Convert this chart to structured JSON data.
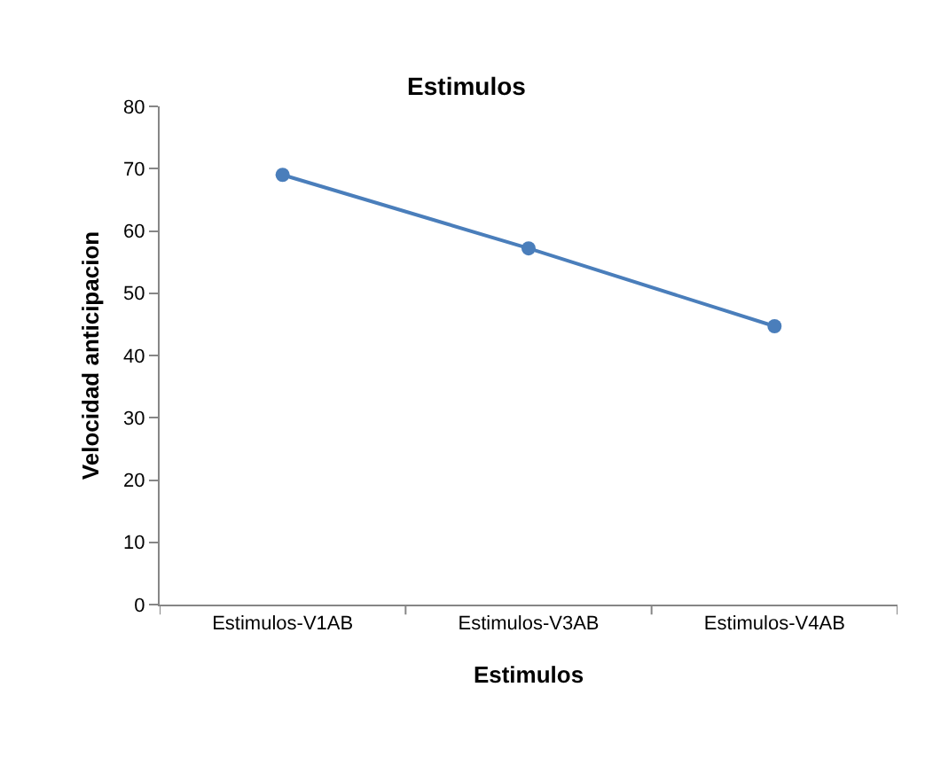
{
  "chart_data": {
    "type": "line",
    "title": "Estimulos",
    "xlabel": "Estimulos",
    "ylabel": "Velocidad anticipacion",
    "categories": [
      "Estimulos-V1AB",
      "Estimulos-V3AB",
      "Estimulos-V4AB"
    ],
    "series": [
      {
        "color": "#4a7ebb",
        "values": [
          69,
          57.2,
          44.7
        ]
      }
    ],
    "ylim": [
      0,
      80
    ],
    "yticks": [
      0,
      10,
      20,
      30,
      40,
      50,
      60,
      70,
      80
    ],
    "grid": false,
    "legend": false,
    "marker": "circle",
    "line_style": "solid"
  }
}
